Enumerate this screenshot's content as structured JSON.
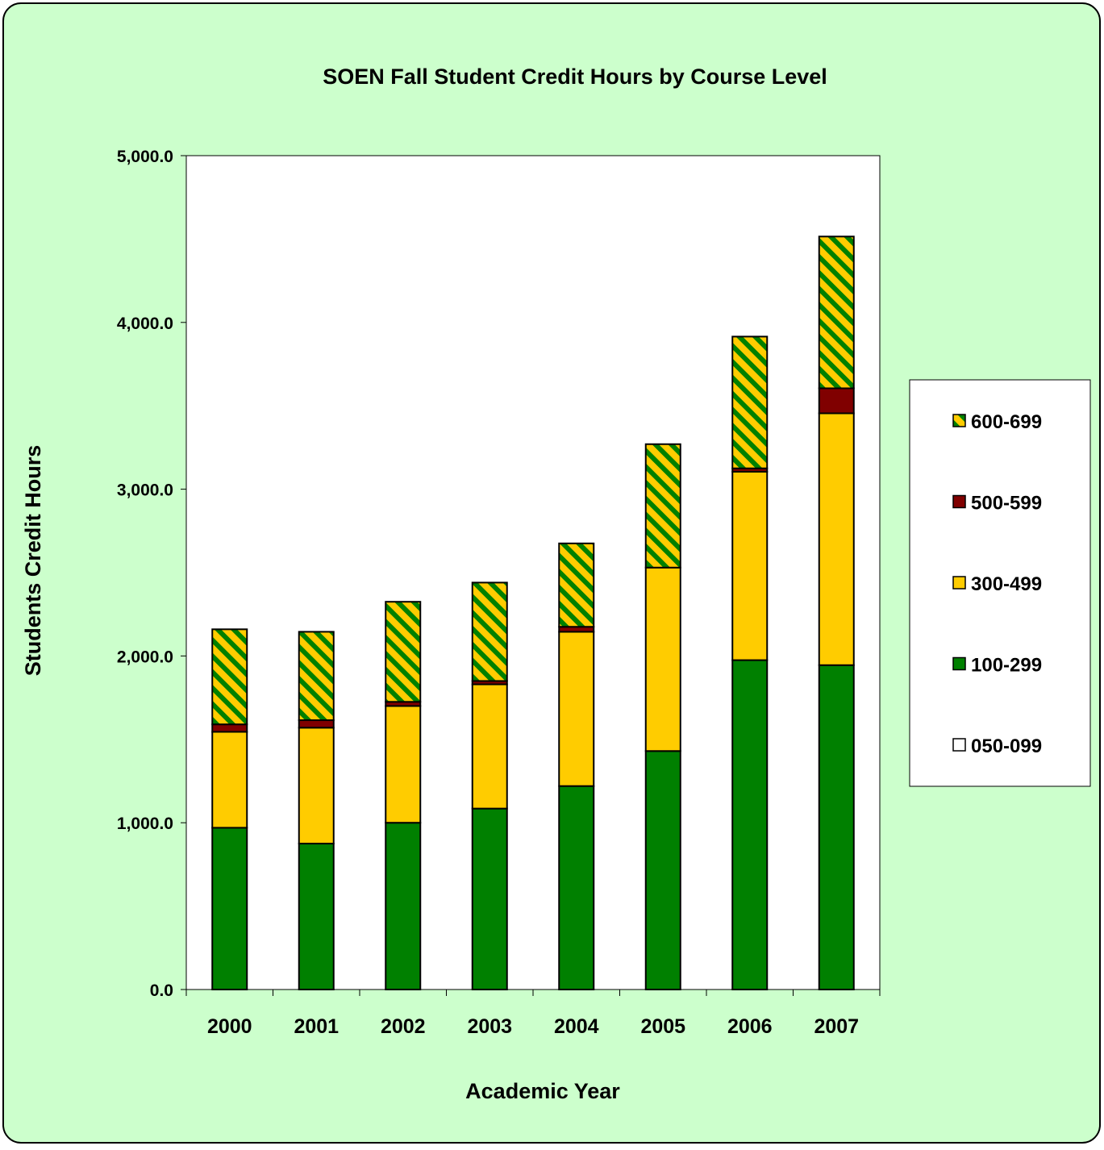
{
  "chart_data": {
    "type": "bar",
    "stacked": true,
    "title": "SOEN Fall Student Credit Hours by Course Level",
    "xlabel": "Academic Year",
    "ylabel": "Students Credit Hours",
    "ylim": [
      0,
      5000
    ],
    "yticks": [
      "0.0",
      "1,000.0",
      "2,000.0",
      "3,000.0",
      "4,000.0",
      "5,000.0"
    ],
    "ytick_values": [
      0,
      1000,
      2000,
      3000,
      4000,
      5000
    ],
    "grid": false,
    "legend_position": "right",
    "categories": [
      "2000",
      "2001",
      "2002",
      "2003",
      "2004",
      "2005",
      "2006",
      "2007"
    ],
    "series": [
      {
        "name": "050-099",
        "color": "#ffffff",
        "pattern": "none",
        "values": [
          0,
          0,
          0,
          0,
          0,
          0,
          0,
          0
        ]
      },
      {
        "name": "100-299",
        "color": "#008000",
        "pattern": "none",
        "values": [
          970,
          875,
          1000,
          1085,
          1220,
          1430,
          1975,
          1945
        ]
      },
      {
        "name": "300-499",
        "color": "#ffcc00",
        "pattern": "none",
        "values": [
          575,
          695,
          700,
          745,
          925,
          1100,
          1130,
          1510
        ]
      },
      {
        "name": "500-599",
        "color": "#800000",
        "pattern": "none",
        "values": [
          45,
          45,
          25,
          20,
          30,
          0,
          20,
          150
        ]
      },
      {
        "name": "600-699",
        "color": "#ffcc00",
        "pattern": "diagonal-stripe",
        "stripe_color": "#008000",
        "values": [
          570,
          530,
          600,
          590,
          500,
          740,
          790,
          910
        ]
      }
    ],
    "legend_order": [
      "600-699",
      "500-599",
      "300-499",
      "100-299",
      "050-099"
    ]
  }
}
